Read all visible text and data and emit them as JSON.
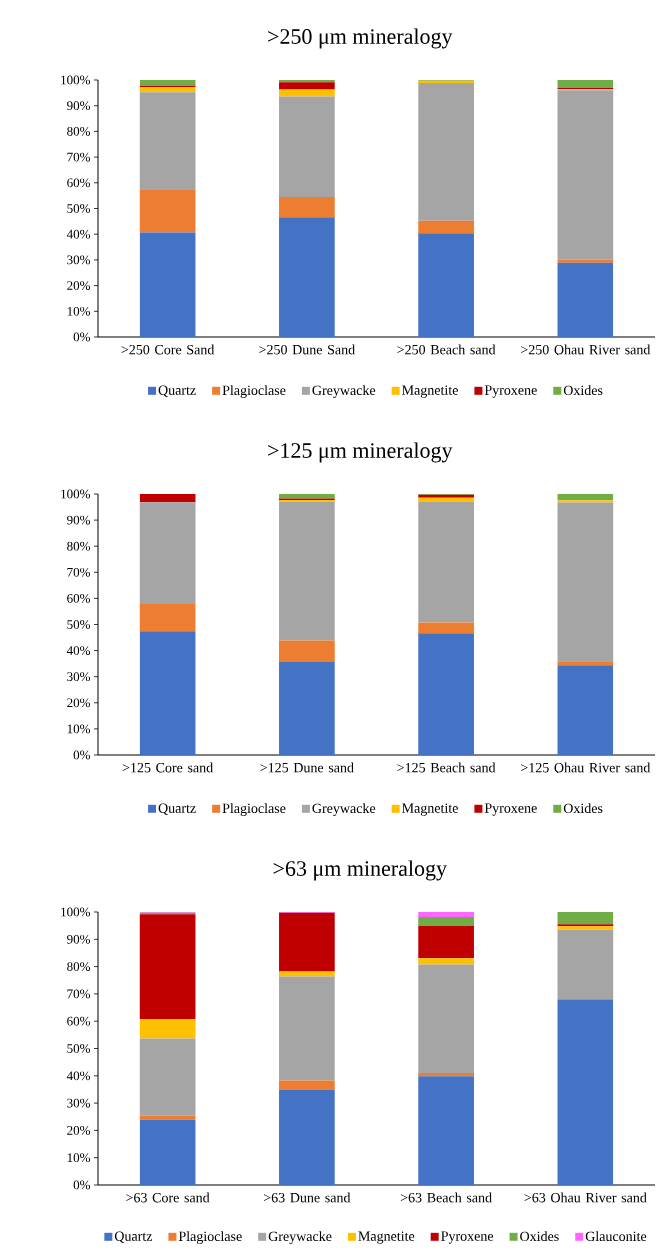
{
  "chart_data": [
    {
      "type": "bar",
      "title": ">250 μm mineralogy",
      "stacked": true,
      "legend": "bottom",
      "categories": [
        ">250 Core Sand",
        ">250 Dune Sand",
        ">250 Beach sand",
        ">250 Ohau River sand"
      ],
      "ylim": [
        0,
        100
      ],
      "yticks": [
        {
          "value": 0,
          "label": "0%"
        },
        {
          "value": 10,
          "label": "10%"
        },
        {
          "value": 20,
          "label": "20%"
        },
        {
          "value": 30,
          "label": "30%"
        },
        {
          "value": 40,
          "label": "40%"
        },
        {
          "value": 50,
          "label": "50%"
        },
        {
          "value": 60,
          "label": "60%"
        },
        {
          "value": 70,
          "label": "70%"
        },
        {
          "value": 80,
          "label": "80%"
        },
        {
          "value": 90,
          "label": "90%"
        },
        {
          "value": 100,
          "label": "100%"
        }
      ],
      "series": [
        {
          "name": "Quartz",
          "color": "#4472c4",
          "values": [
            40.7,
            46.6,
            40.4,
            28.9
          ]
        },
        {
          "name": "Plagioclase",
          "color": "#ed7d31",
          "values": [
            16.5,
            7.9,
            4.8,
            1.2
          ]
        },
        {
          "name": "Greywacke",
          "color": "#a5a5a5",
          "values": [
            38.0,
            39.1,
            53.6,
            65.9
          ]
        },
        {
          "name": "Magnetite",
          "color": "#ffc000",
          "values": [
            2.1,
            2.7,
            0.9,
            0.4
          ]
        },
        {
          "name": "Pyroxene",
          "color": "#c00000",
          "values": [
            0.5,
            2.8,
            0,
            0.6
          ]
        },
        {
          "name": "Oxides",
          "color": "#70ad47",
          "values": [
            2.2,
            0.9,
            0.3,
            3.0
          ]
        }
      ]
    },
    {
      "type": "bar",
      "title": ">125 μm mineralogy",
      "stacked": true,
      "legend": "bottom",
      "categories": [
        ">125 Core sand",
        ">125 Dune sand",
        ">125 Beach sand",
        ">125 Ohau River sand"
      ],
      "ylim": [
        0,
        100
      ],
      "yticks": [
        {
          "value": 0,
          "label": "0%"
        },
        {
          "value": 10,
          "label": "10%"
        },
        {
          "value": 20,
          "label": "20%"
        },
        {
          "value": 30,
          "label": "30%"
        },
        {
          "value": 40,
          "label": "40%"
        },
        {
          "value": 50,
          "label": "50%"
        },
        {
          "value": 60,
          "label": "60%"
        },
        {
          "value": 70,
          "label": "70%"
        },
        {
          "value": 80,
          "label": "80%"
        },
        {
          "value": 90,
          "label": "90%"
        },
        {
          "value": 100,
          "label": "100%"
        }
      ],
      "series": [
        {
          "name": "Quartz",
          "color": "#4472c4",
          "values": [
            47.4,
            35.6,
            46.6,
            34.4
          ]
        },
        {
          "name": "Plagioclase",
          "color": "#ed7d31",
          "values": [
            10.5,
            8.3,
            4.2,
            1.5
          ]
        },
        {
          "name": "Greywacke",
          "color": "#a5a5a5",
          "values": [
            38.9,
            53.2,
            46.3,
            60.8
          ]
        },
        {
          "name": "Magnetite",
          "color": "#ffc000",
          "values": [
            0,
            0.6,
            1.5,
            0.9
          ]
        },
        {
          "name": "Pyroxene",
          "color": "#c00000",
          "values": [
            3.2,
            0.6,
            1.1,
            0
          ]
        },
        {
          "name": "Oxides",
          "color": "#70ad47",
          "values": [
            0,
            1.7,
            0.3,
            2.4
          ]
        }
      ]
    },
    {
      "type": "bar",
      "title": ">63 μm mineralogy",
      "stacked": true,
      "legend": "bottom",
      "categories": [
        ">63 Core sand",
        ">63 Dune sand",
        ">63 Beach sand",
        ">63 Ohau River sand"
      ],
      "ylim": [
        0,
        100
      ],
      "yticks": [
        {
          "value": 0,
          "label": "0%"
        },
        {
          "value": 10,
          "label": "10%"
        },
        {
          "value": 20,
          "label": "20%"
        },
        {
          "value": 30,
          "label": "30%"
        },
        {
          "value": 40,
          "label": "40%"
        },
        {
          "value": 50,
          "label": "50%"
        },
        {
          "value": 60,
          "label": "60%"
        },
        {
          "value": 70,
          "label": "70%"
        },
        {
          "value": 80,
          "label": "80%"
        },
        {
          "value": 90,
          "label": "90%"
        },
        {
          "value": 100,
          "label": "100%"
        }
      ],
      "series": [
        {
          "name": "Quartz",
          "color": "#4472c4",
          "values": [
            23.9,
            35.0,
            39.8,
            67.8
          ]
        },
        {
          "name": "Plagioclase",
          "color": "#ed7d31",
          "values": [
            1.5,
            3.3,
            1.2,
            0.3
          ]
        },
        {
          "name": "Greywacke",
          "color": "#a5a5a5",
          "values": [
            28.3,
            38.1,
            39.8,
            25.4
          ]
        },
        {
          "name": "Magnetite",
          "color": "#ffc000",
          "values": [
            7.0,
            1.8,
            2.3,
            1.3
          ]
        },
        {
          "name": "Pyroxene",
          "color": "#c00000",
          "values": [
            38.5,
            21.5,
            11.8,
            0.7
          ]
        },
        {
          "name": "Oxides",
          "color": "#70ad47",
          "values": [
            0.5,
            0,
            3.3,
            4.5
          ]
        },
        {
          "name": "Glauconite",
          "color": "#ff66ff",
          "values": [
            0.3,
            0.3,
            1.8,
            0
          ]
        }
      ]
    }
  ]
}
